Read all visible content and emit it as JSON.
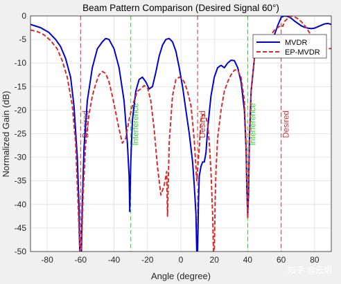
{
  "watermark": "知乎 @云烟",
  "chart_data": {
    "type": "line",
    "title": "Beam Pattern Comparison (Desired Signal 60°)",
    "xlabel": "Angle (degree)",
    "ylabel": "Normalized Gain (dB)",
    "xlim": [
      -90,
      90
    ],
    "ylim": [
      -50,
      0
    ],
    "xticks": [
      -80,
      -60,
      -40,
      -20,
      0,
      20,
      40,
      60,
      80
    ],
    "yticks": [
      0,
      -5,
      -10,
      -15,
      -20,
      -25,
      -30,
      -35,
      -40,
      -45,
      -50
    ],
    "grid": true,
    "legend_position": "top-right",
    "markers": [
      {
        "x": -60,
        "label": "Desired",
        "color": "#c83232"
      },
      {
        "x": -30,
        "label": "Interference",
        "color": "#33cc33"
      },
      {
        "x": 10,
        "label": "Desired",
        "color": "#c83232"
      },
      {
        "x": 40,
        "label": "Interference",
        "color": "#33cc33"
      },
      {
        "x": 60,
        "label": "Desired",
        "color": "#c83232"
      }
    ],
    "series": [
      {
        "name": "MVDR",
        "color": "#0000cc",
        "style": "solid",
        "x": [
          -90,
          -84,
          -79,
          -75,
          -72,
          -69,
          -66,
          -64,
          -62,
          -61,
          -60.5,
          -59.5,
          -59,
          -58,
          -56,
          -53,
          -50,
          -47,
          -45,
          -43,
          -40,
          -37,
          -34,
          -32,
          -31,
          -30.6,
          -30,
          -29,
          -27,
          -25,
          -23,
          -21,
          -19,
          -17,
          -15,
          -13,
          -11,
          -9,
          -7,
          -5,
          -3,
          -1,
          1,
          3,
          5,
          7,
          8,
          9,
          9.5,
          10,
          10.5,
          11,
          12,
          13,
          14,
          15,
          16,
          18,
          20,
          22,
          24,
          26,
          28,
          30,
          32,
          34,
          36,
          38,
          39,
          39.5,
          40,
          40.5,
          41,
          42,
          44,
          46,
          48,
          50,
          52,
          54,
          56,
          58,
          60,
          62,
          64,
          66,
          68,
          70,
          72,
          74,
          76,
          78,
          80,
          82,
          84,
          86,
          88,
          90
        ],
        "y": [
          -1.8,
          -2.5,
          -3.5,
          -5,
          -6.5,
          -9,
          -13,
          -19,
          -30,
          -40,
          -50,
          -50,
          -40,
          -28,
          -18,
          -11,
          -7,
          -5.5,
          -4.8,
          -5,
          -7,
          -11,
          -18,
          -27,
          -34,
          -41.5,
          -31,
          -22,
          -16,
          -13.5,
          -13,
          -14,
          -15.5,
          -15,
          -12,
          -8.5,
          -6.2,
          -5,
          -4.8,
          -5.5,
          -7.5,
          -11,
          -15,
          -20,
          -25,
          -31,
          -36,
          -42,
          -50,
          -50,
          -40,
          -34,
          -32,
          -31,
          -31,
          -29,
          -24,
          -17,
          -13,
          -11,
          -10.5,
          -11,
          -10,
          -9.4,
          -9.5,
          -11,
          -14,
          -20,
          -28,
          -37,
          -42,
          -38,
          -26,
          -16,
          -9,
          -6.5,
          -6,
          -5.5,
          -5,
          -4.5,
          -4,
          -2,
          -0.3,
          0,
          -0.1,
          -0.5,
          -1.1,
          -1.6,
          -2.1,
          -2.4,
          -2.6,
          -2.7,
          -2.6,
          -2.3,
          -2,
          -1.7,
          -1.6,
          -1.8
        ]
      },
      {
        "name": "EP-MVDR",
        "color": "#d92b2b",
        "style": "dashed",
        "x": [
          -90,
          -86,
          -82,
          -78,
          -74,
          -71,
          -68,
          -65,
          -63,
          -61.5,
          -60.5,
          -59.5,
          -58.5,
          -57,
          -55,
          -53,
          -51,
          -49,
          -47,
          -45,
          -43,
          -41,
          -39,
          -37,
          -35,
          -33,
          -31,
          -29,
          -27,
          -26,
          -24,
          -22,
          -20,
          -18,
          -16,
          -14,
          -12,
          -10,
          -8.5,
          -8,
          -7,
          -5,
          -3,
          -1,
          1,
          2,
          4,
          6,
          7,
          8,
          9,
          9.5,
          10,
          11,
          12,
          13,
          14,
          15,
          16,
          17,
          18,
          19,
          19.5,
          20,
          20.5,
          21,
          22,
          24,
          26,
          28,
          30,
          32,
          34,
          36,
          38,
          39,
          39.5,
          40,
          40.5,
          41,
          42,
          44,
          46,
          48,
          50,
          52,
          54,
          56,
          58,
          59,
          60,
          61,
          62,
          64,
          66,
          68,
          70,
          72,
          74,
          76,
          78,
          80,
          82,
          84,
          86,
          88,
          90
        ],
        "y": [
          -3,
          -3.3,
          -4,
          -5.2,
          -7,
          -9.5,
          -13,
          -19,
          -27,
          -40,
          -50,
          -50,
          -38,
          -27,
          -21,
          -17,
          -14.5,
          -12.5,
          -11.8,
          -12.2,
          -14,
          -17,
          -20.5,
          -24,
          -27,
          -26,
          -22,
          -19,
          -17,
          -16,
          -15.5,
          -14.8,
          -15.2,
          -18,
          -24,
          -32,
          -38,
          -36,
          -33,
          -42.5,
          -27,
          -17,
          -13.5,
          -13,
          -13.5,
          -14,
          -16,
          -19,
          -22.5,
          -26.5,
          -32,
          -35,
          -32.5,
          -28,
          -22,
          -21,
          -21,
          -21.5,
          -23,
          -27,
          -33,
          -42,
          -50,
          -50,
          -40,
          -33,
          -26,
          -20,
          -16,
          -14,
          -12.5,
          -11.5,
          -11.5,
          -13,
          -18,
          -27,
          -37,
          -43,
          -36,
          -26,
          -16,
          -9,
          -6.5,
          -6,
          -5.8,
          -5,
          -4,
          -3,
          -2.5,
          -2.2,
          -2,
          -2.2,
          -1.2,
          -0.5,
          0,
          -0.2,
          -0.6,
          -1.2,
          -2,
          -3,
          -4.2,
          -5.5,
          -6.5,
          -7,
          -7.1,
          -7,
          -6.9
        ]
      }
    ]
  }
}
